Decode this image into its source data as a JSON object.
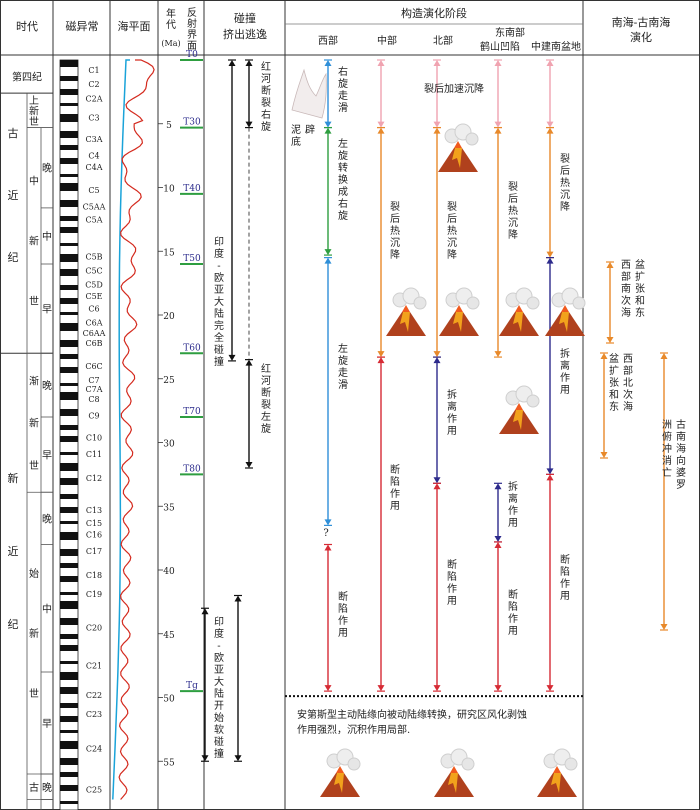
{
  "header": {
    "col_era": "时代",
    "col_mag": "磁异常",
    "col_sea": "海平面",
    "col_age": "年代(Ma)",
    "col_reflect": "反射界面",
    "col_collision": "碰撞挤出逃逸",
    "col_tectonic": "构造演化阶段",
    "col_scs": "南海-古南海演化"
  },
  "regions": [
    "西部",
    "中部",
    "北部",
    "东南部",
    "鹤山凹陷",
    "中建南盆地"
  ],
  "periods": [
    {
      "label": "第四纪",
      "from": 0,
      "to": 2.6
    },
    {
      "label": "古近纪",
      "from": 2.6,
      "to": 23
    },
    {
      "label": "新近纪",
      "from": 23,
      "to": 58
    }
  ],
  "epochs": [
    {
      "label": "上新世",
      "from": 2.6,
      "to": 5.3
    },
    {
      "label": "中新世",
      "from": 5.3,
      "to": 23
    },
    {
      "label": "渐新世",
      "from": 23,
      "to": 33.9
    },
    {
      "label": "始新世",
      "from": 33.9,
      "to": 56
    },
    {
      "label": "古",
      "from": 56,
      "to": 58
    }
  ],
  "subepochs": [
    {
      "label": "晚",
      "from": 5.3,
      "to": 11.6
    },
    {
      "label": "中",
      "from": 11.6,
      "to": 16
    },
    {
      "label": "早",
      "from": 16,
      "to": 23
    },
    {
      "label": "晚",
      "from": 23,
      "to": 28
    },
    {
      "label": "早",
      "from": 28,
      "to": 33.9
    },
    {
      "label": "晚",
      "from": 33.9,
      "to": 38
    },
    {
      "label": "中",
      "from": 38,
      "to": 48
    },
    {
      "label": "早",
      "from": 48,
      "to": 56
    },
    {
      "label": "晚",
      "from": 56,
      "to": 58
    }
  ],
  "chrons": [
    {
      "label": "C1",
      "age": 0.8
    },
    {
      "label": "C2",
      "age": 1.9
    },
    {
      "label": "C2A",
      "age": 3.0
    },
    {
      "label": "C3",
      "age": 4.5
    },
    {
      "label": "C3A",
      "age": 6.2
    },
    {
      "label": "C4",
      "age": 7.5
    },
    {
      "label": "C4A",
      "age": 8.4
    },
    {
      "label": "C5",
      "age": 10.2
    },
    {
      "label": "C5AA",
      "age": 11.5
    },
    {
      "label": "C5A",
      "age": 12.5
    },
    {
      "label": "C5B",
      "age": 15.4
    },
    {
      "label": "C5C",
      "age": 16.5
    },
    {
      "label": "C5D",
      "age": 17.6
    },
    {
      "label": "C5E",
      "age": 18.5
    },
    {
      "label": "C6",
      "age": 19.5
    },
    {
      "label": "C6A",
      "age": 20.6
    },
    {
      "label": "C6AA",
      "age": 21.4
    },
    {
      "label": "C6B",
      "age": 22.2
    },
    {
      "label": "C6C",
      "age": 24
    },
    {
      "label": "C7",
      "age": 25.1
    },
    {
      "label": "C7A",
      "age": 25.8
    },
    {
      "label": "C8",
      "age": 26.6
    },
    {
      "label": "C9",
      "age": 27.9
    },
    {
      "label": "C10",
      "age": 29.6
    },
    {
      "label": "C11",
      "age": 30.9
    },
    {
      "label": "C12",
      "age": 32.8
    },
    {
      "label": "C13",
      "age": 35.3
    },
    {
      "label": "C15",
      "age": 36.3
    },
    {
      "label": "C16",
      "age": 37.2
    },
    {
      "label": "C17",
      "age": 38.5
    },
    {
      "label": "C18",
      "age": 40.4
    },
    {
      "label": "C19",
      "age": 41.9
    },
    {
      "label": "C20",
      "age": 44.5
    },
    {
      "label": "C21",
      "age": 47.5
    },
    {
      "label": "C22",
      "age": 49.8
    },
    {
      "label": "C23",
      "age": 51.3
    },
    {
      "label": "C24",
      "age": 54.0
    },
    {
      "label": "C25",
      "age": 57.2
    }
  ],
  "age_ticks": [
    5,
    10,
    15,
    20,
    25,
    30,
    35,
    40,
    45,
    50,
    55
  ],
  "reflectors": [
    {
      "label": "T0",
      "age": 0
    },
    {
      "label": "T30",
      "age": 5.3
    },
    {
      "label": "T40",
      "age": 10.5
    },
    {
      "label": "T50",
      "age": 16
    },
    {
      "label": "T60",
      "age": 23
    },
    {
      "label": "T70",
      "age": 28
    },
    {
      "label": "T80",
      "age": 32.5
    },
    {
      "label": "Tg",
      "age": 49.5
    }
  ],
  "collision_texts": [
    "红河断裂右旋",
    "印度-欧亚大陆完全碰撞",
    "红河断裂左旋",
    "印度-欧亚大陆开始软碰撞"
  ],
  "tectonic_texts": {
    "west_upper": "右旋走滑",
    "diapir": "泥底辟",
    "west_shift": "左旋转换成右旋",
    "west_lower": "左旋走滑",
    "question": "?",
    "rift_west": "断陷作用",
    "post_rift_accel": "裂后加速沉降",
    "thermal_1": "裂后热沉降",
    "thermal_2": "裂后热沉降",
    "thermal_3": "裂后热沉降",
    "thermal_4": "裂后热沉降",
    "breakup_1": "拆离作用",
    "breakup_2": "拆离作用",
    "breakup_3": "拆离作用",
    "rift_1": "断陷作用",
    "rift_2": "断陷作用",
    "rift_3": "断陷作用",
    "rift_4": "断陷作用"
  },
  "bottom_note_line1": "安第斯型主动陆缘向被动陆缘转换，研究区风化剥蚀",
  "bottom_note_line2": "作用强烈，沉积作用局部.",
  "scs_texts": [
    "西部南次海盆扩张和东",
    "西部北次海盆扩张和东",
    "古南海向婆罗洲俯冲消亡"
  ],
  "colors": {
    "sea_level": "#d42a1e",
    "sea_level_ref": "#1aa3d9",
    "reflector_line": "#2e9e40",
    "reflector_label": "#2b2b8c",
    "arrow_red": "#d62b35",
    "arrow_orange": "#e8892a",
    "arrow_pink": "#f0a3b0",
    "arrow_blue": "#2f8fd8",
    "arrow_green": "#2e9e40",
    "arrow_navy": "#2d2a8c",
    "volcano": "#b0411d"
  }
}
